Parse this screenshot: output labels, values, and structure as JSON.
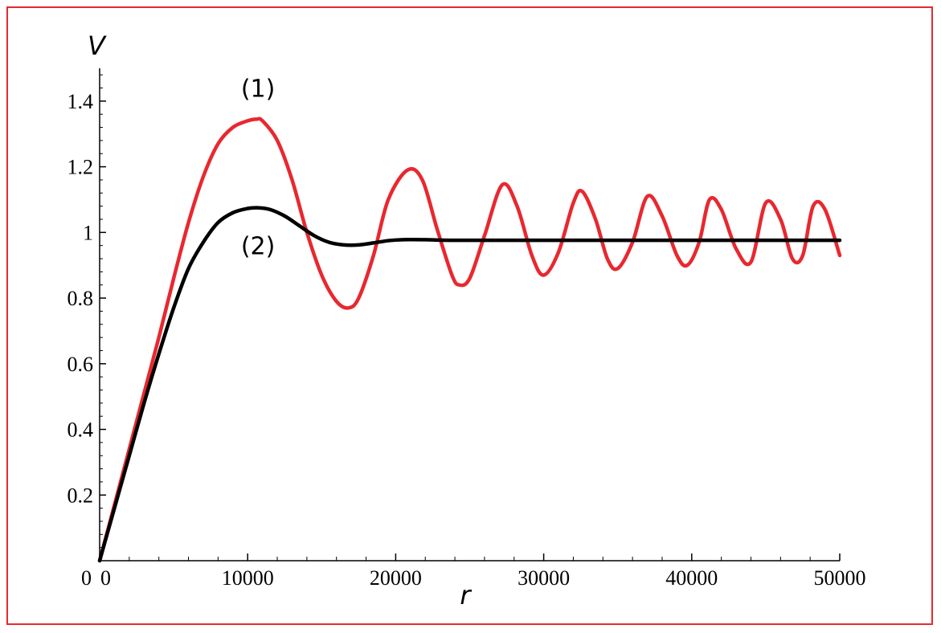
{
  "chart_data": {
    "type": "line",
    "xlabel": "r",
    "ylabel": "V",
    "xlim": [
      0,
      50000
    ],
    "ylim": [
      0,
      1.5
    ],
    "origin_label": "0",
    "x_ticks": [
      0,
      10000,
      20000,
      30000,
      40000,
      50000
    ],
    "x_tick_labels": [
      "0",
      "10000",
      "20000",
      "30000",
      "40000",
      "50000"
    ],
    "y_ticks": [
      0.2,
      0.4,
      0.6,
      0.8,
      1.0,
      1.2,
      1.4
    ],
    "y_tick_labels": [
      "0.2",
      "0.4",
      "0.6",
      "0.8",
      "1",
      "1.2",
      "1.4"
    ],
    "grid": false,
    "legend": "none",
    "annotations": [
      {
        "text": "(1)",
        "series": 0,
        "x": 10700,
        "y": 1.345
      },
      {
        "text": "(2)",
        "series": 1,
        "x": 10700,
        "y": 1.075
      }
    ],
    "series": [
      {
        "color": "#e8282f",
        "x": [
          0,
          1000,
          2000,
          3000,
          4000,
          5000,
          6000,
          7000,
          8000,
          9000,
          10000,
          10600,
          11000,
          12000,
          13000,
          14000,
          15000,
          16000,
          16800,
          17500,
          18500,
          19500,
          20800,
          21800,
          22800,
          23800,
          24300,
          25000,
          26000,
          27200,
          28200,
          29200,
          30000,
          31000,
          32000,
          32600,
          33500,
          34300,
          35000,
          36000,
          37000,
          38000,
          39000,
          39700,
          40500,
          41200,
          42000,
          43000,
          44000,
          45000,
          46000,
          46800,
          47500,
          48200,
          49000,
          50000
        ],
        "y": [
          0,
          0.17,
          0.34,
          0.51,
          0.68,
          0.86,
          1.03,
          1.17,
          1.27,
          1.32,
          1.34,
          1.345,
          1.34,
          1.28,
          1.16,
          1.0,
          0.87,
          0.79,
          0.77,
          0.8,
          0.93,
          1.1,
          1.19,
          1.16,
          1.01,
          0.87,
          0.84,
          0.86,
          0.99,
          1.145,
          1.08,
          0.93,
          0.87,
          0.94,
          1.09,
          1.125,
          1.04,
          0.92,
          0.89,
          0.97,
          1.11,
          1.05,
          0.93,
          0.9,
          0.97,
          1.1,
          1.07,
          0.95,
          0.91,
          1.09,
          1.04,
          0.92,
          0.93,
          1.08,
          1.07,
          0.93
        ]
      },
      {
        "color": "#000000",
        "x": [
          0,
          1000,
          2000,
          3000,
          4000,
          5000,
          6000,
          7000,
          8000,
          9000,
          10000,
          10700,
          11500,
          12500,
          13500,
          14500,
          15500,
          16500,
          17500,
          18500,
          19500,
          20500,
          22000,
          24000,
          30000,
          40000,
          50000
        ],
        "y": [
          0,
          0.16,
          0.32,
          0.48,
          0.63,
          0.77,
          0.89,
          0.97,
          1.03,
          1.06,
          1.073,
          1.075,
          1.07,
          1.05,
          1.02,
          0.99,
          0.97,
          0.962,
          0.962,
          0.968,
          0.975,
          0.978,
          0.978,
          0.976,
          0.976,
          0.976,
          0.976
        ]
      }
    ]
  }
}
